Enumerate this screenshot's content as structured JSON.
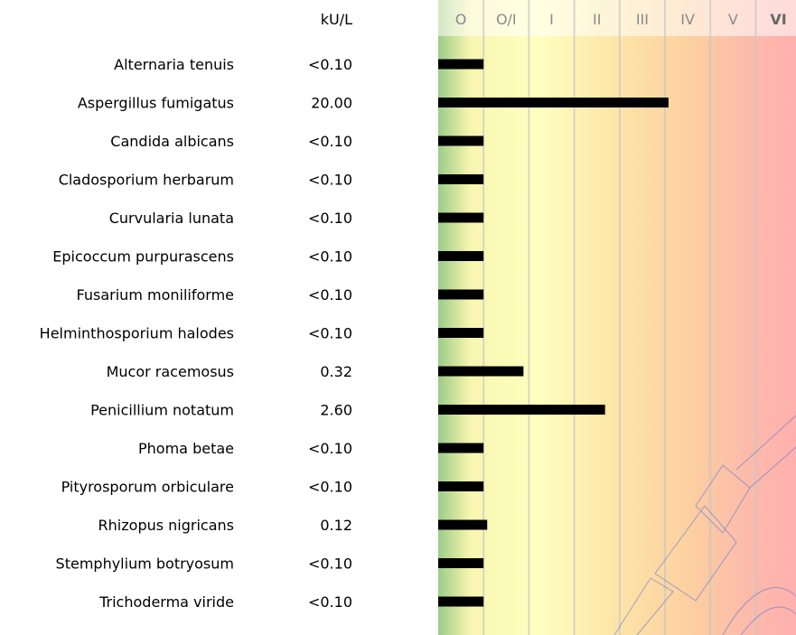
{
  "chart_data": {
    "type": "bar",
    "orientation": "horizontal",
    "unit_label": "kU/L",
    "class_labels": [
      "O",
      "O/I",
      "I",
      "II",
      "III",
      "IV",
      "V",
      "VI"
    ],
    "categories": [
      "Alternaria tenuis",
      "Aspergillus fumigatus",
      "Candida albicans",
      "Cladosporium herbarum",
      "Curvularia lunata",
      "Epicoccum purpurascens",
      "Fusarium moniliforme",
      "Helminthosporium halodes",
      "Mucor racemosus",
      "Penicillium notatum",
      "Phoma betae",
      "Pityrosporum orbiculare",
      "Rhizopus nigricans",
      "Stemphylium botryosum",
      "Trichoderma viride"
    ],
    "value_labels": [
      "<0.10",
      "20.00",
      "<0.10",
      "<0.10",
      "<0.10",
      "<0.10",
      "<0.10",
      "<0.10",
      "0.32",
      "2.60",
      "<0.10",
      "<0.10",
      "0.12",
      "<0.10",
      "<0.10"
    ],
    "values": [
      0.1,
      20.0,
      0.1,
      0.1,
      0.1,
      0.1,
      0.1,
      0.1,
      0.32,
      2.6,
      0.1,
      0.1,
      0.12,
      0.1,
      0.1
    ],
    "class_bounds": [
      0,
      0.1,
      0.35,
      0.7,
      3.5,
      17.5,
      50,
      100
    ],
    "grid": true,
    "colors": {
      "bar": "#000000",
      "class_label": "#8a8a8a",
      "class_label_last": "#666666",
      "gridline": "#c8c8c8",
      "header_band": "#ffffff",
      "watermark": "#4a72d8",
      "gradient_stops": [
        "#9ccc88",
        "#f8f6b0",
        "#ffffc0",
        "#fde6a8",
        "#fdd0a0",
        "#fcbcaa",
        "#ffb0ae"
      ]
    }
  }
}
